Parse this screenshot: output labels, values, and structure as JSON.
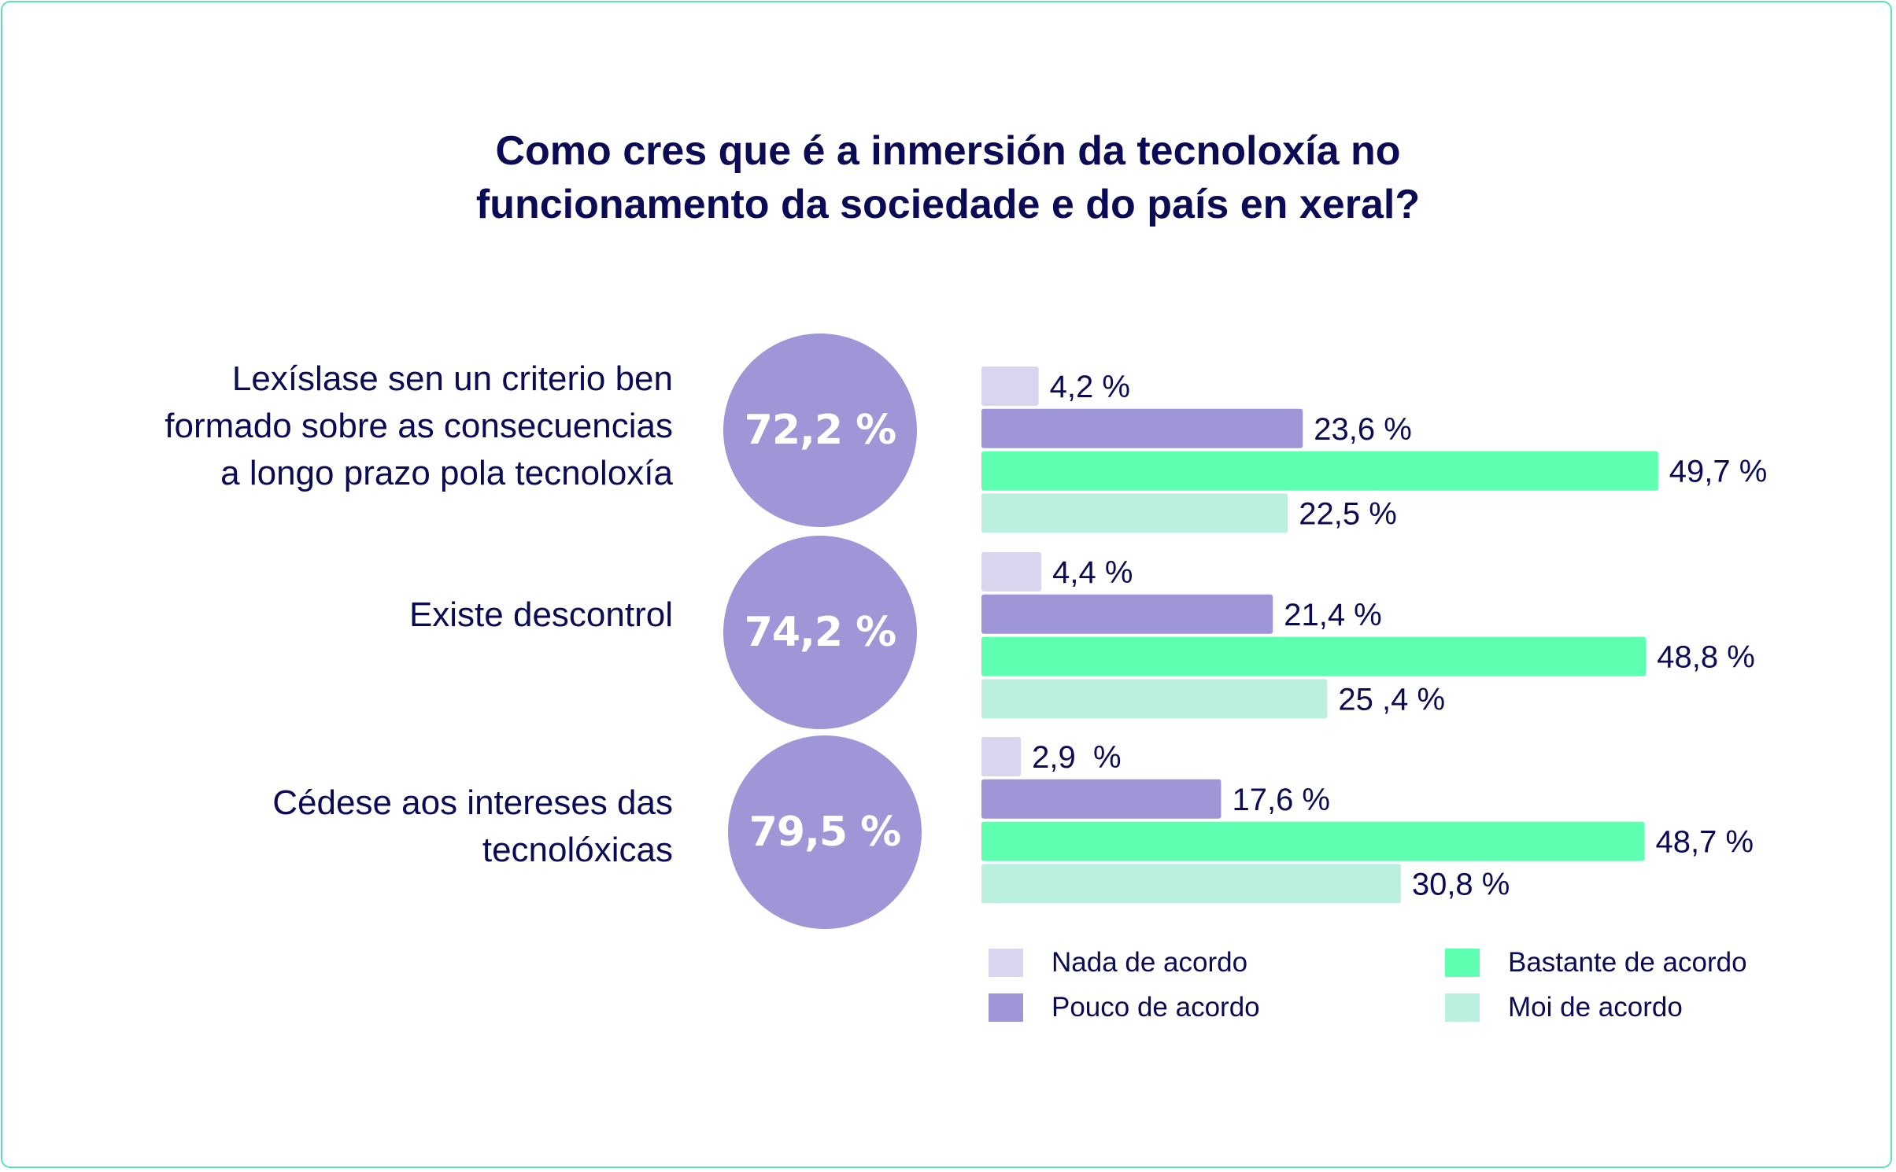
{
  "title_lines": [
    "Como cres que é a inmersión da tecnoloxía no",
    "funcionamento da sociedade e do país en xeral?"
  ],
  "colors": {
    "nada": "#d8d5ee",
    "pouco": "#9e96d6",
    "bastante": "#5effb1",
    "moi": "#bbf0e0",
    "text": "#0b0b55",
    "circle": "#9e96d6",
    "frame": "#5ee0b5"
  },
  "chart_data": {
    "type": "bar",
    "orientation": "horizontal",
    "title": "Como cres que é a inmersión da tecnoloxía no funcionamento da sociedade e do país en xeral?",
    "categories": [
      "Lexíslase sen un criterio ben formado sobre as consecuencias a longo prazo pola tecnoloxía",
      "Existe descontrol",
      "Cédese aos intereses das tecnolóxicas"
    ],
    "category_lines": [
      [
        "Lexíslase sen un criterio ben",
        "formado sobre as consecuencias",
        "a longo prazo pola tecnoloxía"
      ],
      [
        "Existe descontrol"
      ],
      [
        "Cédese aos intereses das",
        "tecnolóxicas"
      ]
    ],
    "totals": [
      "72,2 %",
      "74,2 %",
      "79,5 %"
    ],
    "totals_values": [
      72.2,
      74.2,
      79.5
    ],
    "series": [
      {
        "name": "Nada de acordo",
        "color_key": "nada",
        "values": [
          4.2,
          4.4,
          2.9
        ],
        "labels": [
          "4,2 %",
          "4,4 %",
          "2,9  %"
        ]
      },
      {
        "name": "Pouco de acordo",
        "color_key": "pouco",
        "values": [
          23.6,
          21.4,
          17.6
        ],
        "labels": [
          "23,6 %",
          "21,4 %",
          "17,6 %"
        ]
      },
      {
        "name": "Bastante de acordo",
        "color_key": "bastante",
        "values": [
          49.7,
          48.8,
          48.7
        ],
        "labels": [
          "49,7 %",
          "48,8 %",
          "48,7 %"
        ]
      },
      {
        "name": "Moi de acordo",
        "color_key": "moi",
        "values": [
          22.5,
          25.4,
          30.8
        ],
        "labels": [
          "22,5 %",
          "25 ,4 %",
          "30,8 %"
        ]
      }
    ],
    "xlim": [
      0,
      100
    ],
    "grid": false,
    "legend": {
      "placement": "bottom",
      "items": [
        {
          "label": "Nada de acordo",
          "color_key": "nada"
        },
        {
          "label": "Pouco de acordo",
          "color_key": "pouco"
        },
        {
          "label": "Bastante de acordo",
          "color_key": "bastante"
        },
        {
          "label": "Moi de acordo",
          "color_key": "moi"
        }
      ]
    }
  }
}
